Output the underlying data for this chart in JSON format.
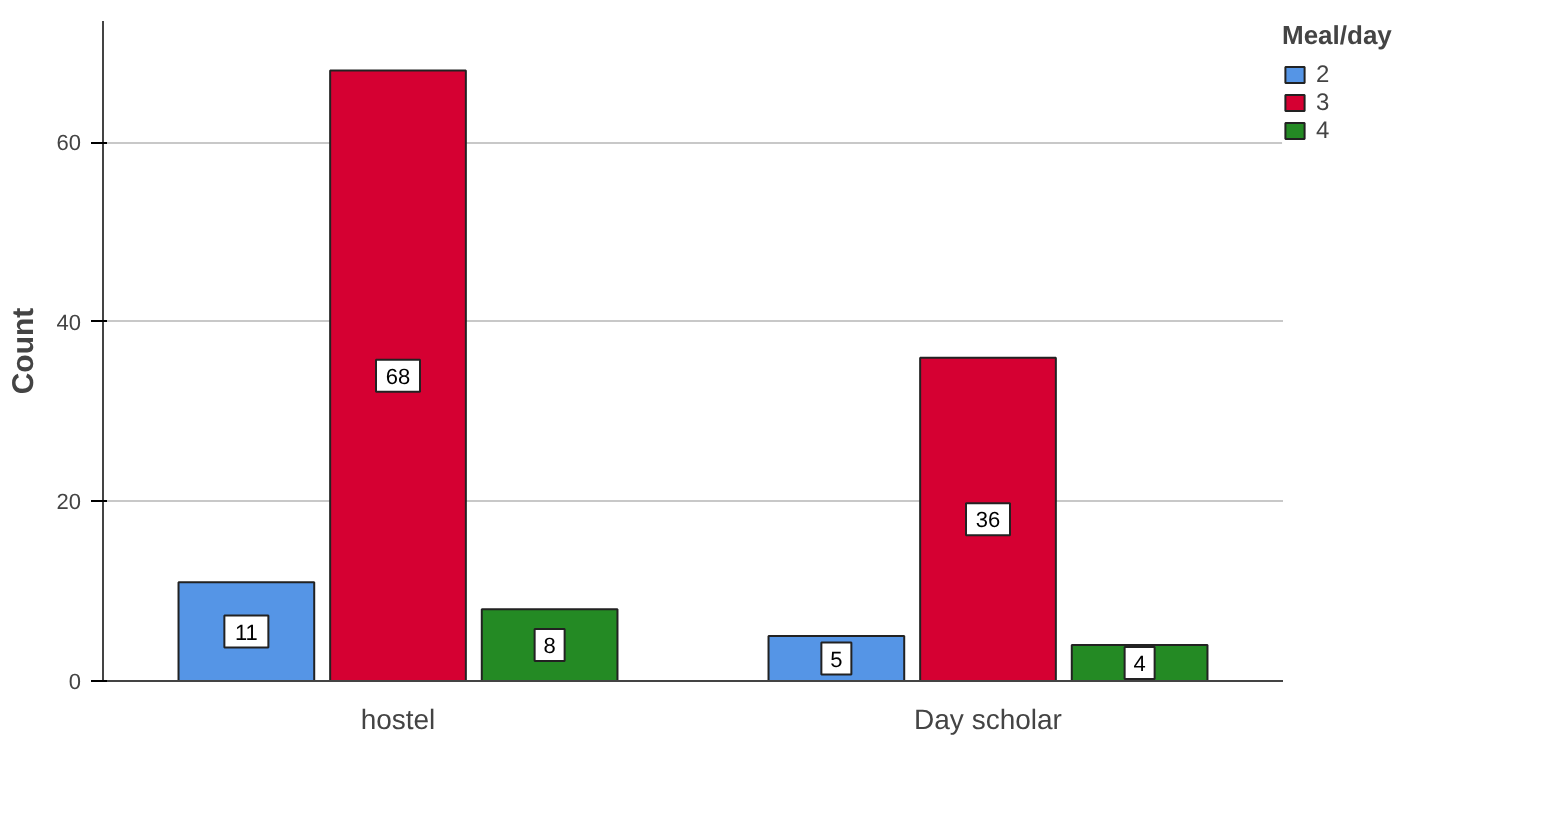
{
  "chart_data": {
    "type": "bar",
    "ylabel": "Count",
    "legend_title": "Meal/day",
    "categories": [
      "hostel",
      "Day scholar"
    ],
    "series": [
      {
        "name": "2",
        "color": "#5595e6",
        "values": [
          11,
          5
        ]
      },
      {
        "name": "3",
        "color": "#d50032",
        "values": [
          68,
          36
        ]
      },
      {
        "name": "4",
        "color": "#248a24",
        "values": [
          8,
          4
        ]
      }
    ],
    "ylim": [
      0,
      73.5
    ],
    "yticks": [
      0,
      20,
      40,
      60
    ],
    "grid": "y",
    "legend": "top right",
    "data_labels": true
  }
}
